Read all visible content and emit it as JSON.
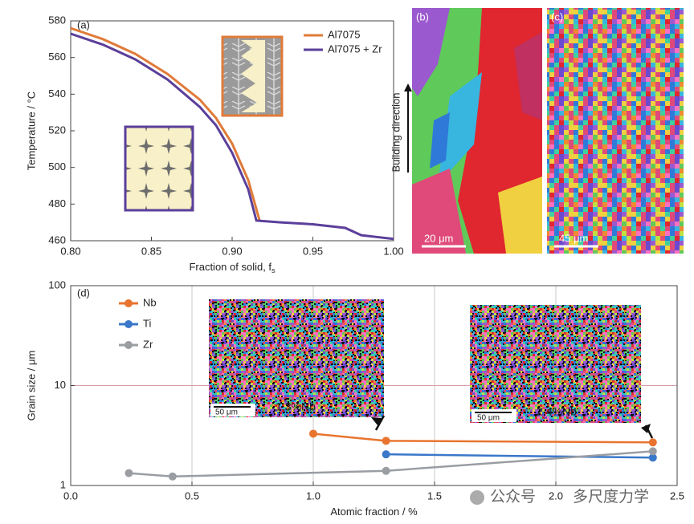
{
  "chart_data": [
    {
      "type": "line",
      "panel_label": "(a)",
      "ylabel": "Temperature / °C",
      "xlabel": "Fraction of solid, f",
      "xlabel_sub": "s",
      "xlim": [
        0.8,
        1.0
      ],
      "ylim": [
        460,
        580
      ],
      "xticks": [
        {
          "value": 0.8,
          "label": "0.80"
        },
        0.85,
        {
          "value": 0.9,
          "label": "0.90"
        },
        0.95,
        {
          "value": 1.0,
          "label": "1.00"
        }
      ],
      "yticks": [
        460,
        480,
        500,
        520,
        540,
        560,
        580
      ],
      "grid": false,
      "legend": "upper right",
      "series": [
        {
          "name": "Al7075",
          "color": "#e07b39",
          "x": [
            0.8,
            0.82,
            0.84,
            0.86,
            0.88,
            0.89,
            0.9,
            0.91,
            0.917
          ],
          "values": [
            576,
            570,
            562,
            551,
            537,
            527,
            513,
            493,
            471
          ]
        },
        {
          "name": "Al7075 + Zr",
          "color": "#5b3f9a",
          "x": [
            0.8,
            0.82,
            0.84,
            0.86,
            0.88,
            0.89,
            0.9,
            0.91,
            0.915,
            0.93,
            0.95,
            0.97,
            0.98,
            0.99,
            1.0
          ],
          "values": [
            573,
            567,
            559,
            548,
            533,
            523,
            508,
            488,
            471,
            470,
            469,
            467,
            463,
            462,
            461
          ]
        }
      ]
    },
    {
      "type": "line",
      "panel_label": "(d)",
      "ylabel": "Grain size / μm",
      "xlabel": "Atomic fraction / %",
      "xlim": [
        0,
        2.5
      ],
      "ylim": [
        1,
        100
      ],
      "log_y": true,
      "xticks": [
        {
          "value": 0,
          "label": "0.0"
        },
        0.5,
        {
          "value": 1,
          "label": "1.0"
        },
        1.5,
        {
          "value": 2,
          "label": "2.0"
        },
        2.5
      ],
      "yticks": [
        1,
        10,
        100
      ],
      "grid": true,
      "markers": true,
      "legend": "upper left",
      "series": [
        {
          "name": "Nb",
          "color": "#e8742f",
          "x": [
            1.0,
            1.3,
            2.4
          ],
          "values": [
            3.3,
            2.8,
            2.7
          ]
        },
        {
          "name": "Ti",
          "color": "#3a78c9",
          "x": [
            1.3,
            2.4
          ],
          "values": [
            2.05,
            1.9
          ]
        },
        {
          "name": "Zr",
          "color": "#9a9ea3",
          "x": [
            0.24,
            0.42,
            1.3,
            2.4
          ],
          "values": [
            1.33,
            1.23,
            1.4,
            2.2
          ]
        }
      ]
    }
  ],
  "images": {
    "b": {
      "label": "(b)",
      "scale": "20 μm",
      "side_text": "Building direction"
    },
    "c": {
      "label": "(c)",
      "scale": "45 μm"
    },
    "inset1": {
      "scale": "50 μm",
      "caption": "1.3%Nb"
    },
    "inset2": {
      "scale": "50 μm",
      "caption": "2.4%Nb"
    }
  },
  "watermark": {
    "left": "公众号",
    "right": "多尺度力学"
  }
}
